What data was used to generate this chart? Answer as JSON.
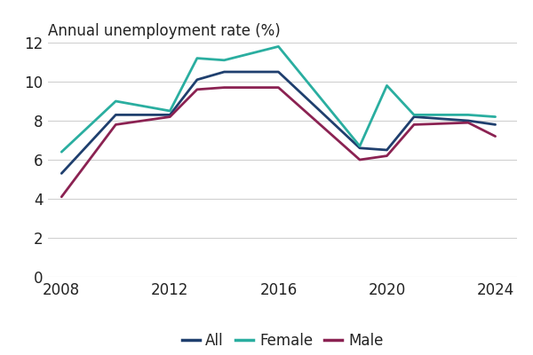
{
  "title": "Annual unemployment rate (%)",
  "years": [
    2008,
    2010,
    2012,
    2013,
    2014,
    2016,
    2019,
    2020,
    2021,
    2023,
    2024
  ],
  "all": [
    5.3,
    8.3,
    8.3,
    10.1,
    10.5,
    10.5,
    6.6,
    6.5,
    8.2,
    8.0,
    7.8
  ],
  "female": [
    6.4,
    9.0,
    8.5,
    11.2,
    11.1,
    11.8,
    6.7,
    9.8,
    8.3,
    8.3,
    8.2
  ],
  "male": [
    4.1,
    7.8,
    8.2,
    9.6,
    9.7,
    9.7,
    6.0,
    6.2,
    7.8,
    7.9,
    7.2
  ],
  "all_color": "#1f3f6e",
  "female_color": "#2aaea0",
  "male_color": "#8b2252",
  "line_width": 2.0,
  "ylim": [
    0,
    12
  ],
  "yticks": [
    0,
    2,
    4,
    6,
    8,
    10,
    12
  ],
  "xlim": [
    2007.5,
    2024.8
  ],
  "xticks": [
    2008,
    2012,
    2016,
    2020,
    2024
  ],
  "legend_labels": [
    "All",
    "Female",
    "Male"
  ],
  "bg_color": "#ffffff",
  "grid_color": "#d0d0d0",
  "title_fontsize": 12,
  "tick_fontsize": 12
}
